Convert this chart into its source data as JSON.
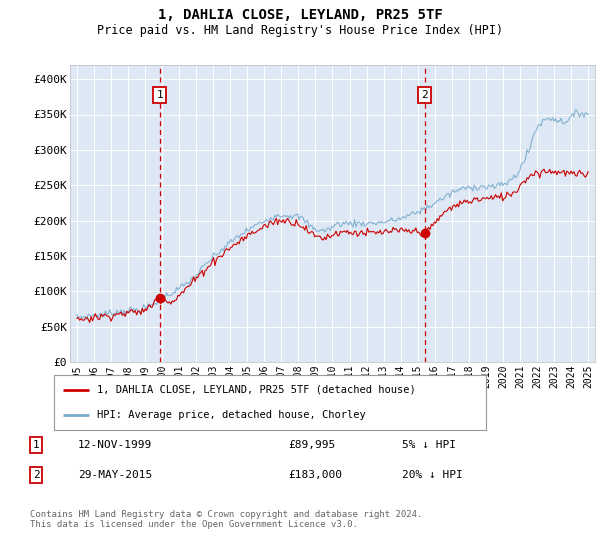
{
  "title": "1, DAHLIA CLOSE, LEYLAND, PR25 5TF",
  "subtitle": "Price paid vs. HM Land Registry's House Price Index (HPI)",
  "legend_line1": "1, DAHLIA CLOSE, LEYLAND, PR25 5TF (detached house)",
  "legend_line2": "HPI: Average price, detached house, Chorley",
  "footer": "Contains HM Land Registry data © Crown copyright and database right 2024.\nThis data is licensed under the Open Government Licence v3.0.",
  "sale1_date": "12-NOV-1999",
  "sale1_price": "£89,995",
  "sale1_hpi": "5% ↓ HPI",
  "sale2_date": "29-MAY-2015",
  "sale2_price": "£183,000",
  "sale2_hpi": "20% ↓ HPI",
  "sale1_x": 1999.87,
  "sale1_y": 89995,
  "sale2_x": 2015.41,
  "sale2_y": 183000,
  "red_color": "#cc0000",
  "blue_color": "#7aabcc",
  "plot_bg": "#dde8f4",
  "ylim": [
    0,
    420000
  ],
  "xlim": [
    1994.6,
    2025.4
  ],
  "yticks": [
    0,
    50000,
    100000,
    150000,
    200000,
    250000,
    300000,
    350000,
    400000
  ],
  "ytick_labels": [
    "£0",
    "£50K",
    "£100K",
    "£150K",
    "£200K",
    "£250K",
    "£300K",
    "£350K",
    "£400K"
  ],
  "xticks": [
    1995,
    1996,
    1997,
    1998,
    1999,
    2000,
    2001,
    2002,
    2003,
    2004,
    2005,
    2006,
    2007,
    2008,
    2009,
    2010,
    2011,
    2012,
    2013,
    2014,
    2015,
    2016,
    2017,
    2018,
    2019,
    2020,
    2021,
    2022,
    2023,
    2024,
    2025
  ]
}
